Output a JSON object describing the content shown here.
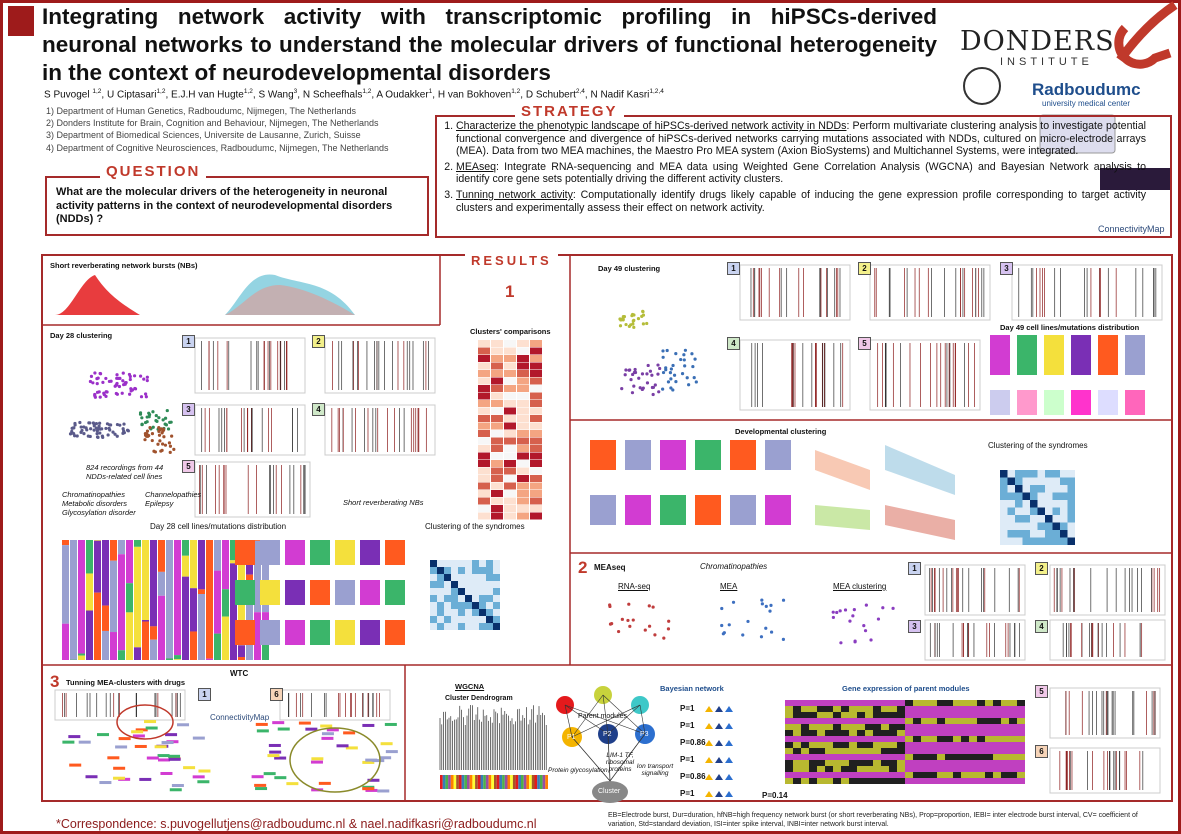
{
  "header": {
    "title": "Integrating network activity with transcriptomic profiling in hiPSCs-derived neuronal networks to understand the molecular drivers of functional heterogeneity in the context of neurodevelopmental disorders",
    "authors": [
      {
        "name": "S Puvogel ",
        "sup": "1,2"
      },
      {
        "name": ", U Ciptasari",
        "sup": "1,2"
      },
      {
        "name": ", E.J.H van Hugte",
        "sup": "1,2"
      },
      {
        "name": ", S Wang",
        "sup": "3"
      },
      {
        "name": ", N Scheefhals",
        "sup": "1,2"
      },
      {
        "name": ", A Oudakker",
        "sup": "1"
      },
      {
        "name": ", H van Bokhoven",
        "sup": "1,2"
      },
      {
        "name": ", D Schubert",
        "sup": "2,4"
      },
      {
        "name": ", N Nadif Kasri",
        "sup": "1,2,4"
      }
    ],
    "affiliations": [
      "1) Department of Human Genetics, Radboudumc, Nijmegen, The Netherlands",
      "2) Donders Institute for Brain, Cognition and Behaviour, Nijmegen, The Netherlands",
      "3) Department of Biomedical Sciences, Universite de Lausanne, Zurich, Suisse",
      "4) Department of Cognitive Neurosciences, Radboudumc, Nijmegen, The Netherlands"
    ],
    "logos": {
      "donders": "DONDERS",
      "institute": "INSTITUTE",
      "radboud": "Radboudumc",
      "radboud_sub": "university medical center"
    }
  },
  "question": {
    "heading": "QUESTION",
    "text": "What are the molecular drivers of the heterogeneity in neuronal activity patterns in the context of neurodevelopmental disorders (NDDs) ?"
  },
  "strategy": {
    "heading": "STRATEGY",
    "items": [
      {
        "term": "Characterize the phenotypic landscape of hiPSCs-derived network activity in NDDs",
        "text": ": Perform multivariate clustering analysis to investigate potential functional convergence and divergence of hiPSCs-derived networks carrying mutations associated with NDDs, cultured on micro-electrode arrays (MEA). Data from two MEA machines, the Maestro Pro MEA system (Axion BioSystems) and Multichannel Systems, were integrated."
      },
      {
        "term": "MEAseq",
        "text": ": Integrate RNA-sequencing and MEA data using Weighted Gene Correlation Analysis (WGCNA) and Bayesian Network analysis to identify core gene sets potentially driving the different activity clusters."
      },
      {
        "term": "Tunning network activity",
        "text": ": Computationally identify drugs likely capable of inducing the gene expression profile corresponding to target activity clusters and experimentally assess their effect on network activity."
      }
    ],
    "logo": "ConnectivityMap"
  },
  "results": {
    "heading": "RESULTS",
    "part1": {
      "number": "1",
      "short_nbs": "Short reverberating network bursts (NBs)",
      "day28": "Day 28 clustering",
      "recordings": "824 recordings from 44 NDDs-related cell lines",
      "groups_left": "Chromatinopathies Metabolic disorders Glycosylation disorder",
      "groups_right": "Channelopathies Epilepsy",
      "short_label": "Short reverberating NBs",
      "comparisons": "Clusters' comparisons",
      "day28_dist": "Day 28 cell lines/mutations distribution",
      "syndromes28": "Clustering of the syndromes",
      "day49": "Day 49 clustering",
      "day49_dist": "Day 49 cell lines/mutations distribution",
      "developmental": "Developmental clustering",
      "syndromes49": "Clustering of the syndromes",
      "clusters": [
        "1",
        "2",
        "3",
        "4",
        "5",
        "6"
      ]
    },
    "part2": {
      "number": "2",
      "heading": "MEAseq",
      "group": "Chromatinopathies",
      "rna": "RNA-seq",
      "mea": "MEA",
      "mea_clustering": "MEA clustering"
    },
    "part3": {
      "number": "3",
      "heading": "Tunning MEA-clusters with drugs",
      "wtc": "WTC",
      "cmap": "ConnectivityMap",
      "wgcna": "WGCNA",
      "dendrogram": "Cluster Dendrogram",
      "bayes": "Bayesian network",
      "gene_expr": "Gene expression of parent modules",
      "parent": "Parent modules",
      "p1": "P1",
      "p2": "P2",
      "p3": "P3",
      "cluster": "Cluster",
      "glyco": "Protein glycosylation",
      "lim": "LIM-1 TF, ribosomal proteins",
      "ion": "Ion transport signalling",
      "p_values": [
        "P=1",
        "P=1",
        "P=0.86",
        "P=1",
        "P=0.86",
        "P=1"
      ],
      "p_last": "P=0.14"
    }
  },
  "footer": {
    "correspondence": "*Correspondence: s.puvogellutjens@radboudumc.nl & nael.nadifkasri@radboudumc.nl",
    "abbreviations": "EB=Electrode burst, Dur=duration, hfNB=high frequency network burst (or short reverberating NBs), Prop=proportion, IEBI= inter electrode burst interval, CV= coefficient of variation, Std=standard deviation, ISI=inter spike interval, INBI=inter network burst interval."
  }
}
